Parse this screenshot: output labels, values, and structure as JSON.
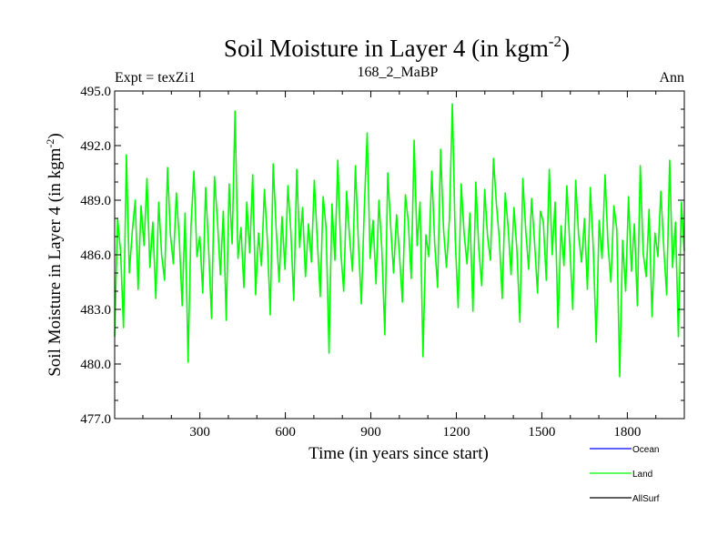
{
  "chart_data": {
    "type": "line",
    "title": "Soil Moisture in Layer 4 (in kgm",
    "title_superscript": "-2",
    "title_close": ")",
    "subtitle_left": "Expt = texZi1",
    "subtitle_center": "168_2_MaBP",
    "subtitle_right": "Ann",
    "xlabel": "Time (in years since start)",
    "ylabel": "Soil Moisture in Layer 4 (in kgm",
    "ylabel_superscript": "-2",
    "ylabel_close": ")",
    "xlim": [
      1,
      2000
    ],
    "ylim": [
      477.0,
      495.0
    ],
    "x_ticks": [
      300,
      600,
      900,
      1200,
      1500,
      1800
    ],
    "x_tick_labels": [
      "300",
      "600",
      "900",
      "1200",
      "1500",
      "1800"
    ],
    "y_ticks": [
      477.0,
      480.0,
      483.0,
      486.0,
      489.0,
      492.0,
      495.0
    ],
    "y_tick_labels": [
      "477.0",
      "480.0",
      "483.0",
      "486.0",
      "489.0",
      "492.0",
      "495.0"
    ],
    "grid": false,
    "legend_position": "bottom-right",
    "series": [
      {
        "name": "Ocean",
        "color": "#0000ff",
        "values": []
      },
      {
        "name": "Land",
        "color": "#00ff00",
        "values": [
          481.5,
          488.0,
          486.2,
          482.0,
          491.5,
          485.0,
          487.3,
          489.0,
          484.1,
          488.7,
          486.5,
          490.2,
          485.3,
          487.8,
          483.6,
          488.9,
          486.0,
          484.6,
          490.8,
          487.1,
          485.5,
          489.4,
          486.9,
          483.2,
          488.3,
          480.1,
          487.6,
          490.6,
          485.9,
          487.0,
          483.9,
          489.7,
          486.3,
          482.5,
          490.3,
          487.9,
          484.9,
          488.4,
          482.4,
          489.9,
          486.6,
          493.9,
          485.8,
          487.5,
          484.2,
          488.9,
          486.1,
          490.4,
          483.8,
          487.2,
          485.4,
          489.6,
          486.8,
          482.7,
          491.0,
          487.4,
          484.5,
          488.1,
          485.2,
          489.8,
          487.3,
          483.5,
          490.7,
          486.4,
          488.6,
          484.8,
          487.7,
          485.6,
          490.1,
          486.9,
          483.7,
          489.2,
          487.5,
          480.6,
          488.8,
          485.7,
          491.2,
          486.2,
          484.0,
          489.5,
          487.0,
          485.1,
          490.9,
          486.7,
          483.3,
          488.5,
          492.7,
          485.8,
          487.9,
          484.4,
          489.0,
          486.3,
          481.6,
          490.5,
          487.6,
          485.0,
          488.2,
          486.0,
          483.4,
          489.3,
          487.8,
          484.7,
          492.3,
          486.5,
          488.9,
          480.4,
          487.1,
          485.9,
          490.6,
          486.6,
          484.2,
          491.8,
          487.4,
          485.3,
          488.0,
          494.3,
          486.8,
          483.1,
          489.9,
          487.2,
          485.5,
          488.3,
          482.9,
          490.0,
          486.4,
          484.3,
          489.6,
          487.0,
          485.7,
          491.3,
          488.8,
          486.9,
          483.6,
          489.4,
          487.5,
          484.9,
          488.6,
          486.2,
          482.3,
          490.2,
          487.3,
          485.2,
          489.1,
          486.7,
          483.9,
          488.4,
          487.8,
          484.6,
          490.7,
          486.0,
          488.9,
          482.0,
          487.6,
          485.4,
          489.8,
          486.5,
          483.0,
          490.1,
          487.1,
          485.6,
          488.0,
          484.1,
          489.7,
          486.3,
          481.2,
          487.9,
          485.8,
          490.4,
          486.6,
          484.5,
          488.7,
          487.4,
          479.3,
          486.8,
          484.0,
          489.2,
          485.1,
          487.7,
          483.2,
          490.9,
          486.1,
          484.8,
          488.5,
          482.6,
          487.2,
          485.9,
          489.5,
          486.4,
          483.8,
          491.2,
          485.3,
          487.8,
          481.5,
          488.9,
          486.2
        ]
      },
      {
        "name": "AllSurf",
        "color": "#000000",
        "values": []
      }
    ]
  }
}
